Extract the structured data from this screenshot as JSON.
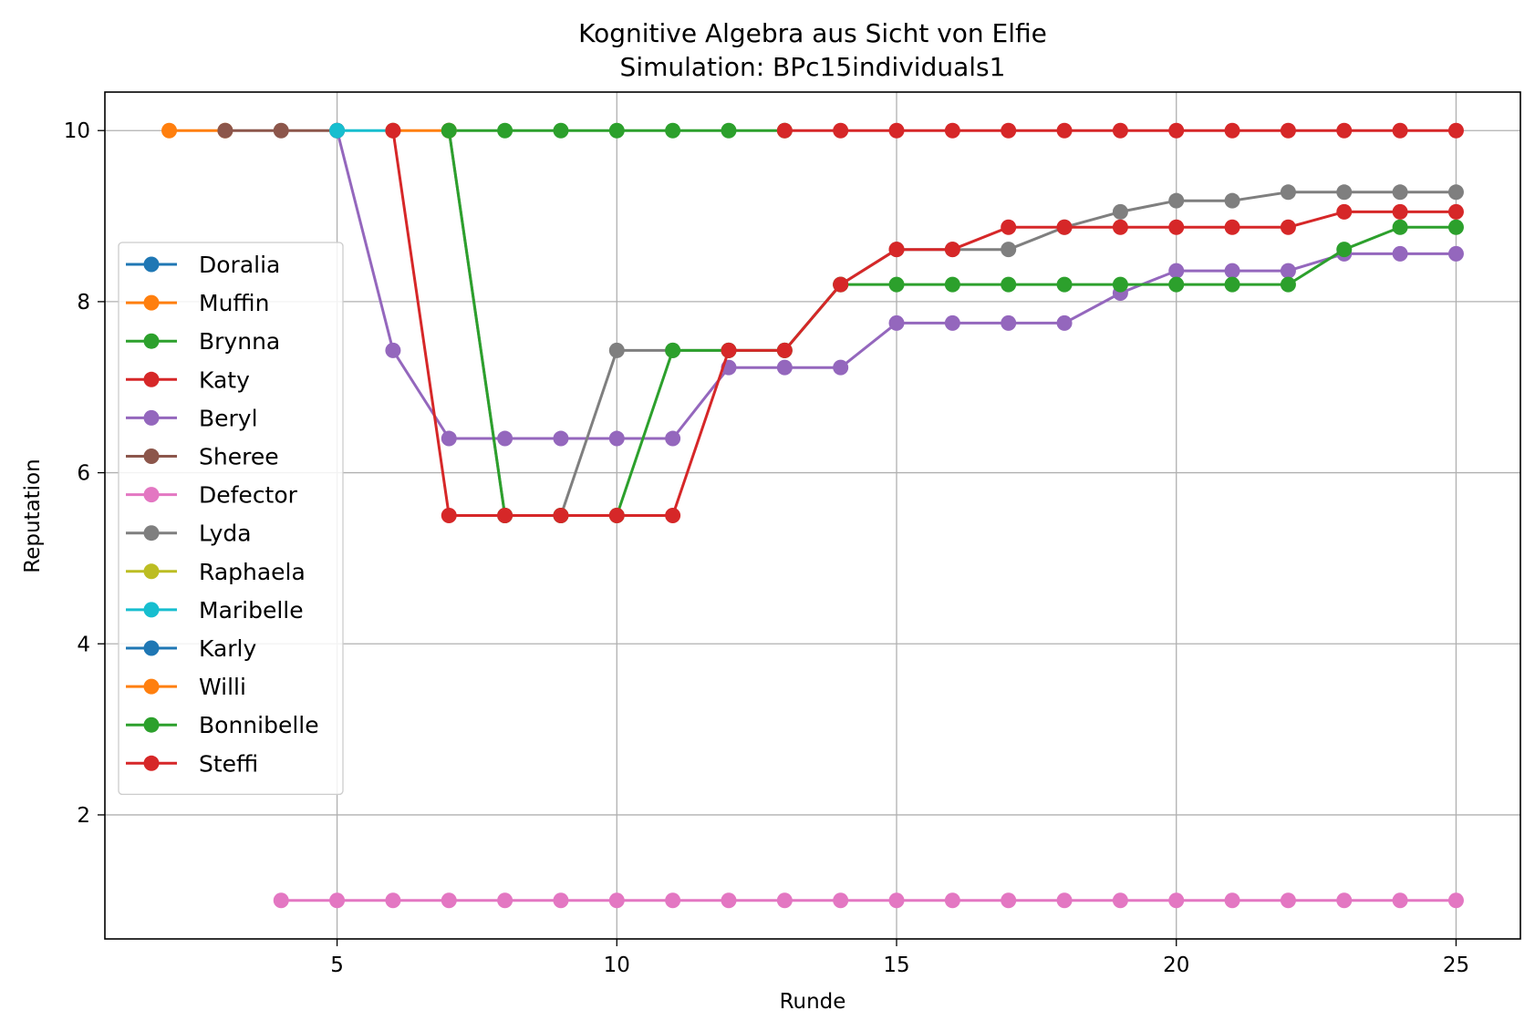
{
  "chart_data": {
    "type": "line",
    "title": "Kognitive Algebra aus Sicht von Elfie",
    "subtitle": "Simulation: BPc15individuals1",
    "xlabel": "Runde",
    "ylabel": "Reputation",
    "xlim": [
      0.85,
      26.15
    ],
    "ylim": [
      0.55,
      10.45
    ],
    "xticks": [
      5,
      10,
      15,
      20,
      25
    ],
    "yticks": [
      2,
      4,
      6,
      8,
      10
    ],
    "grid": true,
    "legend_position": "left",
    "series": [
      {
        "name": "Doralia",
        "color": "#1f77b4",
        "x": [],
        "y": []
      },
      {
        "name": "Muffin",
        "color": "#ff7f0e",
        "x": [
          2,
          3
        ],
        "y": [
          10,
          10
        ]
      },
      {
        "name": "Brynna",
        "color": "#2ca02c",
        "x": [
          7,
          8,
          9,
          10,
          11,
          12,
          13
        ],
        "y": [
          10,
          10,
          10,
          10,
          10,
          10,
          10
        ]
      },
      {
        "name": "Katy",
        "color": "#d62728",
        "x": [],
        "y": []
      },
      {
        "name": "Beryl",
        "color": "#9467bd",
        "x": [
          5,
          6,
          7,
          8,
          9,
          10,
          11,
          12,
          13,
          14,
          15,
          16,
          17,
          18,
          19,
          20,
          21,
          22,
          23,
          24,
          25
        ],
        "y": [
          10,
          7.43,
          6.4,
          6.4,
          6.4,
          6.4,
          6.4,
          7.23,
          7.23,
          7.23,
          7.75,
          7.75,
          7.75,
          7.75,
          8.1,
          8.36,
          8.36,
          8.36,
          8.56,
          8.56,
          8.56
        ]
      },
      {
        "name": "Sheree",
        "color": "#8c564b",
        "x": [
          3,
          4,
          5
        ],
        "y": [
          10,
          10,
          10
        ]
      },
      {
        "name": "Defector",
        "color": "#e377c2",
        "x": [
          4,
          5,
          6,
          7,
          8,
          9,
          10,
          11,
          12,
          13,
          14,
          15,
          16,
          17,
          18,
          19,
          20,
          21,
          22,
          23,
          24,
          25
        ],
        "y": [
          1,
          1,
          1,
          1,
          1,
          1,
          1,
          1,
          1,
          1,
          1,
          1,
          1,
          1,
          1,
          1,
          1,
          1,
          1,
          1,
          1,
          1
        ]
      },
      {
        "name": "Lyda",
        "color": "#7f7f7f",
        "x": [
          7,
          8,
          9,
          10,
          11,
          12,
          13,
          14,
          15,
          16,
          17,
          18,
          19,
          20,
          21,
          22,
          23,
          24,
          25
        ],
        "y": [
          10,
          5.5,
          5.5,
          7.43,
          7.43,
          7.43,
          7.43,
          8.2,
          8.61,
          8.61,
          8.61,
          8.87,
          9.05,
          9.18,
          9.18,
          9.28,
          9.28,
          9.28,
          9.28
        ]
      },
      {
        "name": "Raphaela",
        "color": "#bcbd22",
        "x": [],
        "y": []
      },
      {
        "name": "Maribelle",
        "color": "#17becf",
        "x": [
          5,
          6
        ],
        "y": [
          10,
          10
        ]
      },
      {
        "name": "Karly",
        "color": "#1f77b4",
        "x": [],
        "y": []
      },
      {
        "name": "Willi",
        "color": "#ff7f0e",
        "x": [
          6,
          7
        ],
        "y": [
          10,
          10
        ]
      },
      {
        "name": "Bonnibelle",
        "color": "#2ca02c",
        "x": [
          7,
          8,
          9,
          10,
          11,
          12,
          13,
          14,
          15,
          16,
          17,
          18,
          19,
          20,
          21,
          22,
          23,
          24,
          25
        ],
        "y": [
          10,
          5.5,
          5.5,
          5.5,
          7.43,
          7.43,
          7.43,
          8.2,
          8.2,
          8.2,
          8.2,
          8.2,
          8.2,
          8.2,
          8.2,
          8.2,
          8.61,
          8.87,
          8.87
        ]
      },
      {
        "name": "Steffi",
        "color": "#d62728",
        "x": [
          6,
          7,
          8,
          9,
          10,
          11,
          12,
          13,
          14,
          15,
          16,
          17,
          18,
          19,
          20,
          21,
          22,
          23,
          24,
          25
        ],
        "y": [
          10,
          5.5,
          5.5,
          5.5,
          5.5,
          5.5,
          7.43,
          7.43,
          8.2,
          8.61,
          8.61,
          8.87,
          8.87,
          8.87,
          8.87,
          8.87,
          8.87,
          9.05,
          9.05,
          9.05
        ]
      },
      {
        "name": "",
        "color": "#d62728",
        "x": [
          13,
          14,
          15,
          16,
          17,
          18,
          19,
          20,
          21,
          22,
          23,
          24,
          25
        ],
        "y": [
          10,
          10,
          10,
          10,
          10,
          10,
          10,
          10,
          10,
          10,
          10,
          10,
          10
        ]
      }
    ]
  }
}
